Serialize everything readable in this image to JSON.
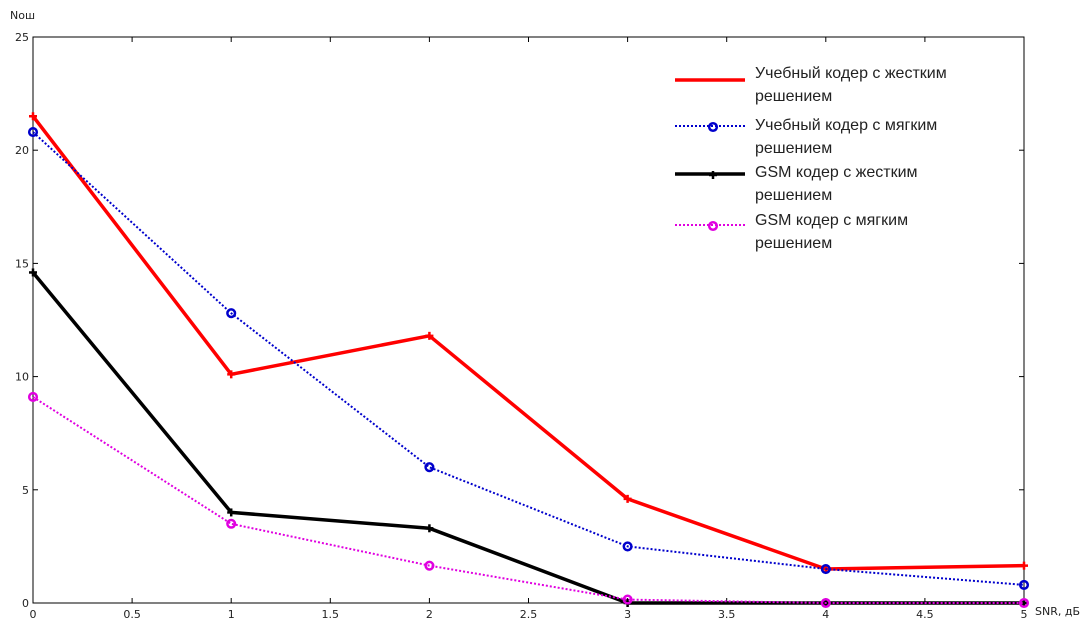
{
  "chart_data": {
    "type": "line",
    "title": "",
    "xlabel": "SNR, дБ",
    "ylabel": "Nош",
    "xlim": [
      0,
      5
    ],
    "ylim": [
      0,
      25
    ],
    "x_ticks": [
      "0",
      "0.5",
      "1",
      "1.5",
      "2",
      "2.5",
      "3",
      "3.5",
      "4",
      "4.5",
      "5"
    ],
    "y_ticks": [
      "0",
      "5",
      "10",
      "15",
      "20",
      "25"
    ],
    "grid": false,
    "legend_position": "top-right",
    "x": [
      0,
      1,
      2,
      3,
      4,
      5
    ],
    "series": [
      {
        "name_lines": [
          "Учебный кодер с жестким",
          "решением"
        ],
        "values": [
          21.5,
          10.1,
          11.8,
          4.6,
          1.5,
          1.65
        ],
        "color": "#ff0000",
        "line_style": "solid",
        "marker": "plus"
      },
      {
        "name_lines": [
          "Учебный кодер с мягким",
          "решением"
        ],
        "values": [
          20.8,
          12.8,
          6.0,
          2.5,
          1.5,
          0.8
        ],
        "color": "#0000cc",
        "line_style": "dotted",
        "marker": "circle"
      },
      {
        "name_lines": [
          "GSM кодер с жестким",
          "решением"
        ],
        "values": [
          14.6,
          4.0,
          3.3,
          0.0,
          0.0,
          0.0
        ],
        "color": "#000000",
        "line_style": "solid",
        "marker": "plus"
      },
      {
        "name_lines": [
          "GSM кодер с мягким",
          "решением"
        ],
        "values": [
          9.1,
          3.5,
          1.65,
          0.15,
          0.0,
          0.0
        ],
        "color": "#e000e0",
        "line_style": "dotted",
        "marker": "circle"
      }
    ]
  }
}
